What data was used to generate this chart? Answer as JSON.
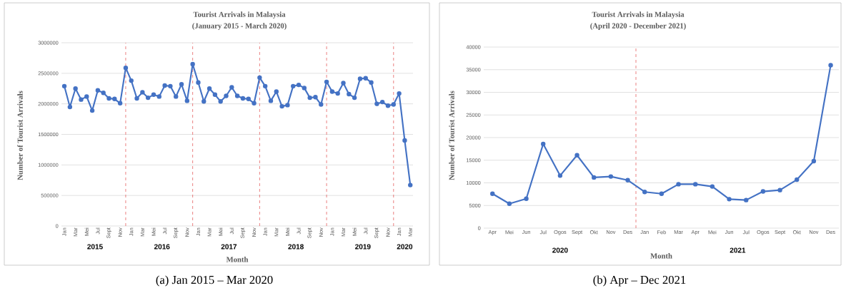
{
  "chart_data": [
    {
      "type": "line",
      "title": "Tourist Arrivals in Malaysia",
      "subtitle": "(January 2015 - March 2020)",
      "xlabel": "Month",
      "ylabel": "Number of Tourist Arrivals",
      "x": [
        "2015-01",
        "2015-02",
        "2015-03",
        "2015-04",
        "2015-05",
        "2015-06",
        "2015-07",
        "2015-08",
        "2015-09",
        "2015-10",
        "2015-11",
        "2015-12",
        "2016-01",
        "2016-02",
        "2016-03",
        "2016-04",
        "2016-05",
        "2016-06",
        "2016-07",
        "2016-08",
        "2016-09",
        "2016-10",
        "2016-11",
        "2016-12",
        "2017-01",
        "2017-02",
        "2017-03",
        "2017-04",
        "2017-05",
        "2017-06",
        "2017-07",
        "2017-08",
        "2017-09",
        "2017-10",
        "2017-11",
        "2017-12",
        "2018-01",
        "2018-02",
        "2018-03",
        "2018-04",
        "2018-05",
        "2018-06",
        "2018-07",
        "2018-08",
        "2018-09",
        "2018-10",
        "2018-11",
        "2018-12",
        "2019-01",
        "2019-02",
        "2019-03",
        "2019-04",
        "2019-05",
        "2019-06",
        "2019-07",
        "2019-08",
        "2019-09",
        "2019-10",
        "2019-11",
        "2019-12",
        "2020-01",
        "2020-02",
        "2020-03"
      ],
      "series": [
        {
          "color": "#4472c4",
          "values": [
            2290000,
            1950000,
            2250000,
            2070000,
            2120000,
            1890000,
            2220000,
            2180000,
            2090000,
            2080000,
            2010000,
            2590000,
            2380000,
            2090000,
            2190000,
            2100000,
            2150000,
            2120000,
            2300000,
            2290000,
            2120000,
            2320000,
            2050000,
            2650000,
            2350000,
            2040000,
            2250000,
            2150000,
            2040000,
            2130000,
            2270000,
            2130000,
            2090000,
            2080000,
            2010000,
            2430000,
            2290000,
            2050000,
            2200000,
            1960000,
            1980000,
            2290000,
            2310000,
            2260000,
            2100000,
            2110000,
            1990000,
            2360000,
            2200000,
            2170000,
            2340000,
            2160000,
            2100000,
            2410000,
            2420000,
            2350000,
            2000000,
            2030000,
            1970000,
            1990000,
            2170000,
            1400000,
            670000
          ]
        }
      ],
      "xlim": [
        "2014-12-16",
        "2020-03-16"
      ],
      "xticks": [
        {
          "value": "2015-01",
          "label": "Jan"
        },
        {
          "value": "2015-03",
          "label": "Mar"
        },
        {
          "value": "2015-05",
          "label": "Mei"
        },
        {
          "value": "2015-07",
          "label": "Jul"
        },
        {
          "value": "2015-09",
          "label": "Sept"
        },
        {
          "value": "2015-11",
          "label": "Nov"
        },
        {
          "value": "2016-01",
          "label": "Jan"
        },
        {
          "value": "2016-03",
          "label": "Mar"
        },
        {
          "value": "2016-05",
          "label": "Mei"
        },
        {
          "value": "2016-07",
          "label": "Jul"
        },
        {
          "value": "2016-09",
          "label": "Sept"
        },
        {
          "value": "2016-11",
          "label": "Nov"
        },
        {
          "value": "2017-01",
          "label": "Jan"
        },
        {
          "value": "2017-03",
          "label": "Mar"
        },
        {
          "value": "2017-05",
          "label": "Mei"
        },
        {
          "value": "2017-07",
          "label": "Jul"
        },
        {
          "value": "2017-09",
          "label": "Sept"
        },
        {
          "value": "2017-11",
          "label": "Nov"
        },
        {
          "value": "2018-01",
          "label": "Jan"
        },
        {
          "value": "2018-03",
          "label": "Mar"
        },
        {
          "value": "2018-05",
          "label": "Mei"
        },
        {
          "value": "2018-07",
          "label": "Jul"
        },
        {
          "value": "2018-09",
          "label": "Sept"
        },
        {
          "value": "2018-11",
          "label": "Nov"
        },
        {
          "value": "2019-01",
          "label": "Jan"
        },
        {
          "value": "2019-03",
          "label": "Mar"
        },
        {
          "value": "2019-05",
          "label": "Mei"
        },
        {
          "value": "2019-07",
          "label": "Jul"
        },
        {
          "value": "2019-09",
          "label": "Sept"
        },
        {
          "value": "2019-11",
          "label": "Nov"
        },
        {
          "value": "2020-01",
          "label": "Jan"
        },
        {
          "value": "2020-03",
          "label": "Mar"
        }
      ],
      "ylim": [
        0,
        3000000
      ],
      "yticks": [
        0,
        500000,
        1000000,
        1500000,
        2000000,
        2500000,
        3000000
      ],
      "grid": "y",
      "marker": "circle",
      "line_style": "solid",
      "ref_lines": [
        {
          "axis": "x",
          "value": "2015-12",
          "color": "#e04040",
          "line_style": "dashed"
        },
        {
          "axis": "x",
          "value": "2016-12",
          "color": "#e04040",
          "line_style": "dashed"
        },
        {
          "axis": "x",
          "value": "2017-12",
          "color": "#e04040",
          "line_style": "dashed"
        },
        {
          "axis": "x",
          "value": "2018-12",
          "color": "#e04040",
          "line_style": "dashed"
        },
        {
          "axis": "x",
          "value": "2019-12",
          "color": "#e04040",
          "line_style": "dashed"
        }
      ],
      "annotations": [
        "2015",
        "2016",
        "2017",
        "2018",
        "2019",
        "2020",
        "(a) Jan 2015 – Mar 2020"
      ]
    },
    {
      "type": "line",
      "title": "Tourist Arrivals in Malaysia",
      "subtitle": "(April 2020 - December 2021)",
      "xlabel": "Month",
      "ylabel": "Number of Tourist Arrivals",
      "x": [
        "2020-04",
        "2020-05",
        "2020-06",
        "2020-07",
        "2020-08",
        "2020-09",
        "2020-10",
        "2020-11",
        "2020-12",
        "2021-01",
        "2021-02",
        "2021-03",
        "2021-04",
        "2021-05",
        "2021-06",
        "2021-07",
        "2021-08",
        "2021-09",
        "2021-10",
        "2021-11",
        "2021-12"
      ],
      "series": [
        {
          "color": "#4472c4",
          "values": [
            7600,
            5400,
            6500,
            18600,
            11600,
            16100,
            11200,
            11400,
            10600,
            8000,
            7600,
            9700,
            9700,
            9200,
            6400,
            6200,
            8100,
            8400,
            10700,
            14800,
            36000
          ]
        }
      ],
      "xlim": [
        "2020-03-16",
        "2021-12-16"
      ],
      "xticks": [
        {
          "value": "2020-04",
          "label": "Apr"
        },
        {
          "value": "2020-05",
          "label": "Mei"
        },
        {
          "value": "2020-06",
          "label": "Jun"
        },
        {
          "value": "2020-07",
          "label": "Jul"
        },
        {
          "value": "2020-08",
          "label": "Ogos"
        },
        {
          "value": "2020-09",
          "label": "Sept"
        },
        {
          "value": "2020-10",
          "label": "Okt"
        },
        {
          "value": "2020-11",
          "label": "Nov"
        },
        {
          "value": "2020-12",
          "label": "Des"
        },
        {
          "value": "2021-01",
          "label": "Jan"
        },
        {
          "value": "2021-02",
          "label": "Feb"
        },
        {
          "value": "2021-03",
          "label": "Mar"
        },
        {
          "value": "2021-04",
          "label": "Apr"
        },
        {
          "value": "2021-05",
          "label": "Mei"
        },
        {
          "value": "2021-06",
          "label": "Jun"
        },
        {
          "value": "2021-07",
          "label": "Jul"
        },
        {
          "value": "2021-08",
          "label": "Ogos"
        },
        {
          "value": "2021-09",
          "label": "Sept"
        },
        {
          "value": "2021-10",
          "label": "Okt"
        },
        {
          "value": "2021-11",
          "label": "Nov"
        },
        {
          "value": "2021-12",
          "label": "Des"
        }
      ],
      "ylim": [
        0,
        40000
      ],
      "yticks": [
        0,
        5000,
        10000,
        15000,
        20000,
        25000,
        30000,
        35000,
        40000
      ],
      "grid": "y",
      "marker": "circle",
      "line_style": "solid",
      "ref_lines": [
        {
          "axis": "x",
          "value": "2020-12-16",
          "color": "#e04040",
          "line_style": "dashed"
        }
      ],
      "annotations": [
        "2020",
        "2021",
        "(b) Apr – Dec 2021"
      ]
    }
  ]
}
